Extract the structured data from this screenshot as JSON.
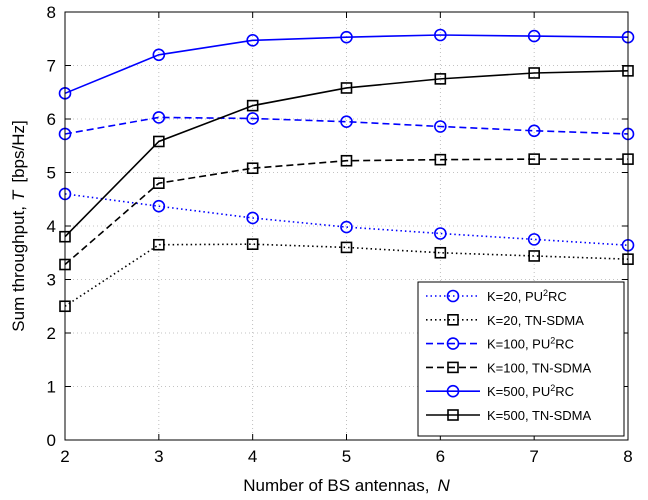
{
  "chart_data": {
    "type": "line",
    "xlabel": "Number of BS antennas,",
    "xlabel_symbol": "N",
    "ylabel": "Sum throughput,",
    "ylabel_symbol": "T",
    "ylabel_unit": "[bps/Hz]",
    "xlim": [
      2,
      8
    ],
    "ylim": [
      0,
      8
    ],
    "xticks": [
      2,
      3,
      4,
      5,
      6,
      7,
      8
    ],
    "yticks": [
      0,
      1,
      2,
      3,
      4,
      5,
      6,
      7,
      8
    ],
    "grid": true,
    "legend_position": "bottom-right",
    "x": [
      2,
      3,
      4,
      5,
      6,
      7,
      8
    ],
    "series": [
      {
        "name": "K=20, PU",
        "name_sup": "2",
        "name_tail": "RC",
        "marker": "circle",
        "dash": "dotted",
        "color": "#0000ff",
        "values": [
          4.6,
          4.37,
          4.15,
          3.98,
          3.86,
          3.75,
          3.64
        ]
      },
      {
        "name": "K=20, TN-SDMA",
        "marker": "square",
        "dash": "dotted",
        "color": "#000000",
        "values": [
          2.5,
          3.65,
          3.66,
          3.6,
          3.5,
          3.44,
          3.38
        ]
      },
      {
        "name": "K=100, PU",
        "name_sup": "2",
        "name_tail": "RC",
        "marker": "circle",
        "dash": "dashed",
        "color": "#0000ff",
        "values": [
          5.72,
          6.03,
          6.01,
          5.95,
          5.86,
          5.78,
          5.72
        ]
      },
      {
        "name": "K=100, TN-SDMA",
        "marker": "square",
        "dash": "dashed",
        "color": "#000000",
        "values": [
          3.28,
          4.8,
          5.08,
          5.22,
          5.24,
          5.25,
          5.25
        ]
      },
      {
        "name": "K=500, PU",
        "name_sup": "2",
        "name_tail": "RC",
        "marker": "circle",
        "dash": "solid",
        "color": "#0000ff",
        "values": [
          6.48,
          7.2,
          7.47,
          7.53,
          7.57,
          7.55,
          7.53
        ]
      },
      {
        "name": "K=500, TN-SDMA",
        "marker": "square",
        "dash": "solid",
        "color": "#000000",
        "values": [
          3.8,
          5.58,
          6.25,
          6.58,
          6.75,
          6.86,
          6.9
        ]
      }
    ]
  }
}
